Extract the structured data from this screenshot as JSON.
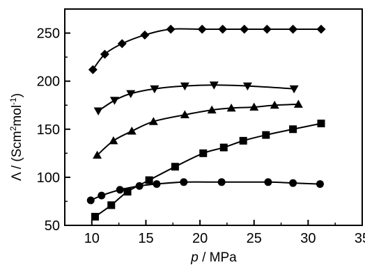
{
  "chart_data": {
    "type": "scatter",
    "xlabel_var": "p",
    "xlabel_unit": " / MPa",
    "ylabel_sym": "Λ",
    "ylabel_unit_pre": " / (Scm",
    "ylabel_sup1": "2",
    "ylabel_mid": "mol",
    "ylabel_sup2": "-1",
    "ylabel_end": ")",
    "xlim": [
      7.5,
      35
    ],
    "ylim": [
      50,
      275
    ],
    "xticks": [
      10,
      15,
      20,
      25,
      30,
      35
    ],
    "yticks": [
      50,
      100,
      150,
      200,
      250
    ],
    "grid": false,
    "series": [
      {
        "marker": "diamond",
        "x": [
          10.1,
          11.2,
          12.8,
          14.9,
          17.3,
          20.2,
          22.1,
          24.1,
          26.2,
          28.6,
          31.2
        ],
        "y": [
          212,
          228,
          239,
          248,
          254,
          254,
          254,
          254,
          254,
          254,
          254
        ]
      },
      {
        "marker": "triangle-down",
        "x": [
          10.6,
          12.1,
          13.6,
          15.8,
          18.6,
          21.3,
          24.4,
          28.7
        ],
        "y": [
          169,
          180,
          187,
          192,
          195,
          196,
          195,
          192
        ]
      },
      {
        "marker": "triangle-up",
        "x": [
          10.5,
          12.0,
          13.7,
          15.7,
          18.6,
          21.1,
          22.9,
          25.0,
          26.9,
          29.1
        ],
        "y": [
          123,
          138,
          148,
          158,
          165,
          170,
          172,
          173,
          175,
          176
        ]
      },
      {
        "marker": "square",
        "x": [
          10.3,
          11.8,
          13.3,
          15.3,
          17.7,
          20.3,
          22.2,
          24.0,
          26.1,
          28.6,
          31.2
        ],
        "y": [
          59,
          71,
          85,
          97,
          111,
          125,
          131,
          138,
          144,
          150,
          156
        ]
      },
      {
        "marker": "circle",
        "x": [
          9.9,
          10.9,
          12.6,
          14.4,
          16.0,
          18.5,
          22.0,
          26.3,
          28.6,
          31.1
        ],
        "y": [
          76,
          81,
          87,
          91,
          93,
          95,
          95,
          95,
          94,
          93
        ]
      }
    ]
  }
}
